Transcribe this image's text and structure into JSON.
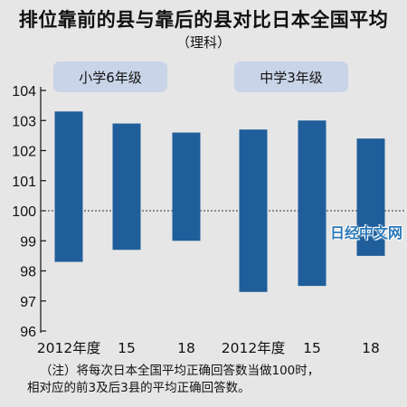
{
  "title": "排位靠前的县与靠后的县对比日本全国平均",
  "subtitle": "（理科）",
  "watermark": "日经中文网",
  "note_line1": "（注）将每次日本全国平均正确回答数当做100时，",
  "note_line2": "相对应的前3及后3县的平均正确回答数。",
  "chart_data": {
    "type": "bar",
    "title": "排位靠前的县与靠后的县对比日本全国平均",
    "subtitle": "（理科）",
    "ylim": [
      96,
      104
    ],
    "yticks": [
      "96",
      "97",
      "98",
      "99",
      "100",
      "101",
      "102",
      "103",
      "104"
    ],
    "reference_line": 100,
    "bar_color": "#1f5e9a",
    "panel_color": "#c9d4e8",
    "groups": [
      {
        "name": "小学6年级",
        "bars": [
          {
            "label": "2012年度",
            "low": 98.3,
            "high": 103.3
          },
          {
            "label": "15",
            "low": 98.7,
            "high": 102.9
          },
          {
            "label": "18",
            "low": 99.0,
            "high": 102.6
          }
        ]
      },
      {
        "name": "中学3年级",
        "bars": [
          {
            "label": "2012年度",
            "low": 97.3,
            "high": 102.7
          },
          {
            "label": "15",
            "low": 97.5,
            "high": 103.0
          },
          {
            "label": "18",
            "low": 98.5,
            "high": 102.4
          }
        ]
      }
    ]
  }
}
